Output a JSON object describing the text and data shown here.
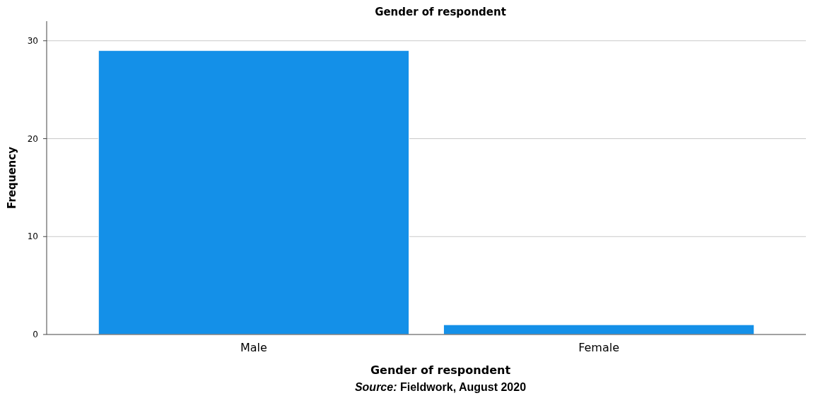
{
  "chart_data": {
    "type": "bar",
    "title": "Gender of respondent",
    "xlabel": "Gender of respondent",
    "ylabel": "Frequency",
    "categories": [
      "Male",
      "Female"
    ],
    "values": [
      29,
      1
    ],
    "color": "#1490e8",
    "ylim": [
      0,
      32
    ],
    "yticks": [
      0,
      10,
      20,
      30
    ],
    "grid": "y",
    "annotations": [
      "Source: Fieldwork, August 2020"
    ]
  }
}
